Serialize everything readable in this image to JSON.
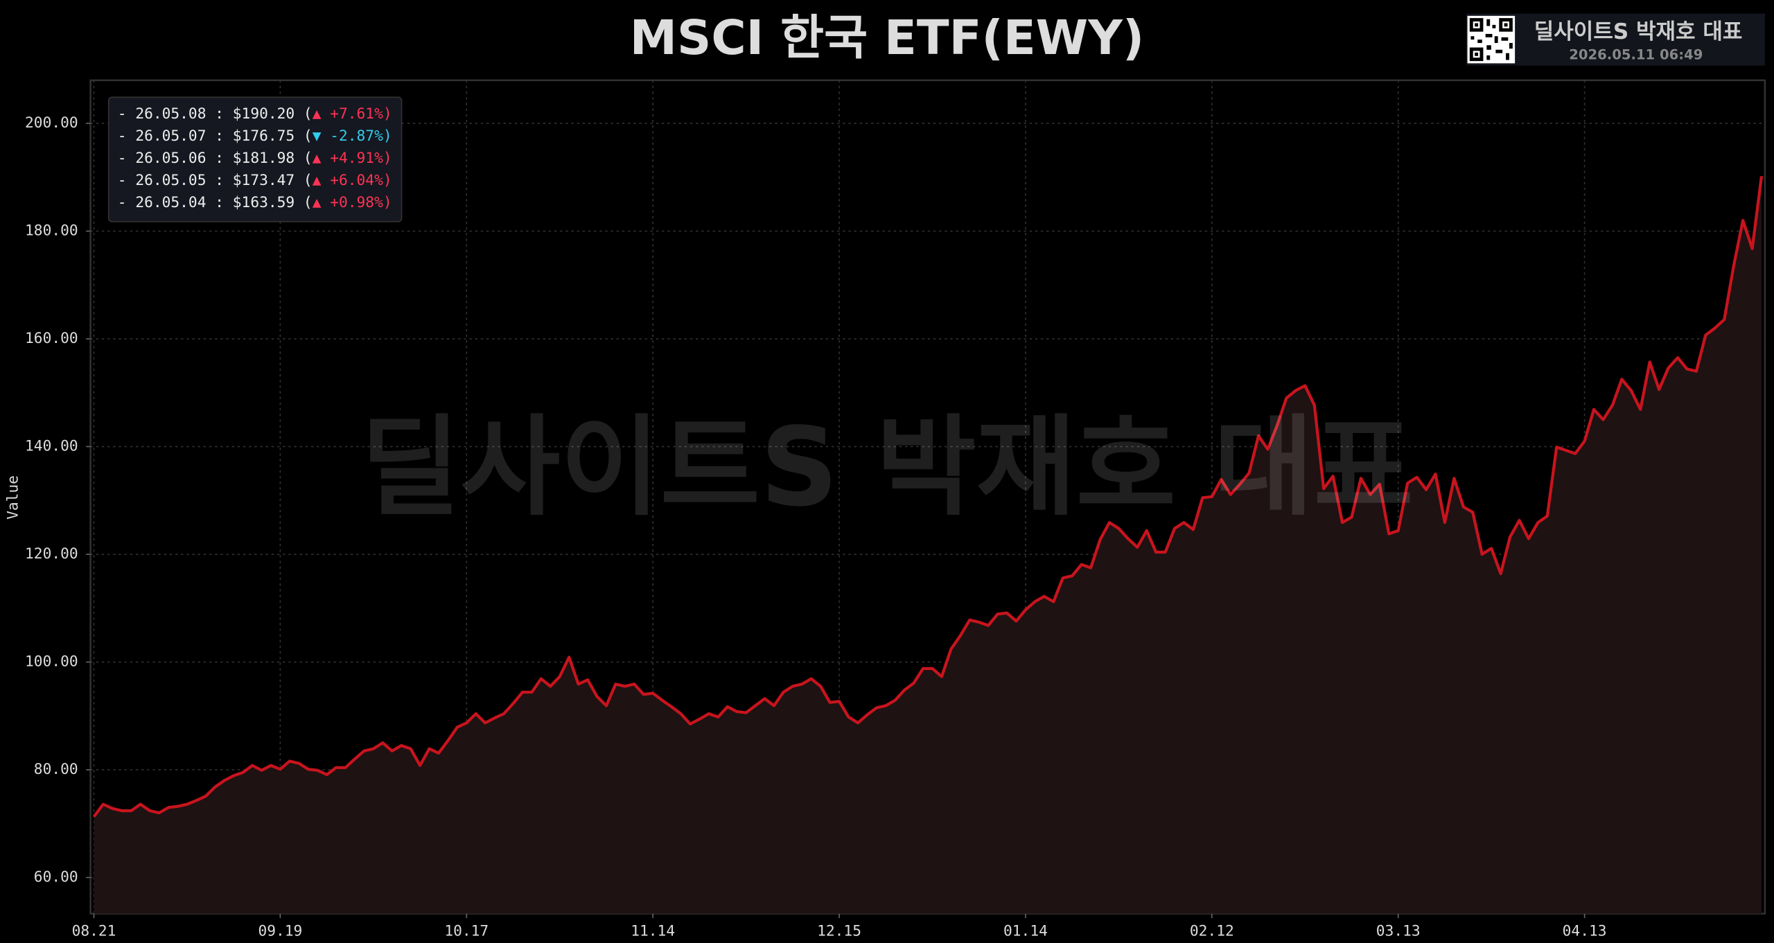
{
  "chart_data": {
    "type": "line",
    "title": "MSCI 한국 ETF(EWY)",
    "watermark": "딜사이트S 박재호 대표",
    "badge": {
      "name": "딜사이트S 박재호 대표",
      "timestamp": "2026.05.11 06:49"
    },
    "y_label": "Value",
    "color": "#c8141e",
    "fill_color": "#1e1212",
    "grid": true,
    "legend_position": "upper left",
    "ylim": [
      53.3,
      208
    ],
    "yticks": [
      {
        "value": 60,
        "label": "60.00"
      },
      {
        "value": 80,
        "label": "80.00"
      },
      {
        "value": 100,
        "label": "100.00"
      },
      {
        "value": 120,
        "label": "120.00"
      },
      {
        "value": 140,
        "label": "140.00"
      },
      {
        "value": 160,
        "label": "160.00"
      },
      {
        "value": 180,
        "label": "180.00"
      },
      {
        "value": 200,
        "label": "200.00"
      }
    ],
    "categories": [
      "08.21",
      null,
      null,
      null,
      null,
      null,
      null,
      null,
      null,
      null,
      null,
      null,
      null,
      null,
      null,
      null,
      null,
      null,
      null,
      null,
      "09.19",
      null,
      null,
      null,
      null,
      null,
      null,
      null,
      null,
      null,
      null,
      null,
      null,
      null,
      null,
      null,
      null,
      null,
      null,
      null,
      "10.17",
      null,
      null,
      null,
      null,
      null,
      null,
      null,
      null,
      null,
      null,
      null,
      null,
      null,
      null,
      null,
      null,
      null,
      null,
      null,
      "11.14",
      null,
      null,
      null,
      null,
      null,
      null,
      null,
      null,
      null,
      null,
      null,
      null,
      null,
      null,
      null,
      null,
      null,
      null,
      null,
      "12.15",
      null,
      null,
      null,
      null,
      null,
      null,
      null,
      null,
      null,
      null,
      null,
      null,
      null,
      null,
      null,
      null,
      null,
      null,
      null,
      "01.14",
      null,
      null,
      null,
      null,
      null,
      null,
      null,
      null,
      null,
      null,
      null,
      null,
      null,
      null,
      null,
      null,
      null,
      null,
      null,
      "02.12",
      null,
      null,
      null,
      null,
      null,
      null,
      null,
      null,
      null,
      null,
      null,
      null,
      null,
      null,
      null,
      null,
      null,
      null,
      null,
      "03.13",
      null,
      null,
      null,
      null,
      null,
      null,
      null,
      null,
      null,
      null,
      null,
      null,
      null,
      null,
      null,
      null,
      null,
      null,
      null,
      "04.13",
      null,
      null,
      null,
      null,
      null,
      null,
      null,
      null,
      null,
      null,
      null,
      null,
      null,
      null,
      null,
      null,
      null,
      null,
      null
    ],
    "values": [
      71.3,
      73.6,
      72.8,
      72.4,
      72.4,
      73.6,
      72.4,
      72.0,
      73.0,
      73.2,
      73.6,
      74.3,
      75.1,
      76.8,
      78.0,
      78.9,
      79.5,
      80.8,
      79.9,
      80.8,
      80.1,
      81.6,
      81.2,
      80.1,
      79.9,
      79.1,
      80.4,
      80.4,
      82.0,
      83.5,
      83.9,
      85.0,
      83.5,
      84.5,
      83.9,
      80.8,
      83.9,
      83.1,
      85.4,
      87.9,
      88.7,
      90.4,
      88.7,
      89.6,
      90.4,
      92.3,
      94.4,
      94.4,
      96.9,
      95.5,
      97.3,
      100.9,
      95.9,
      96.7,
      93.6,
      91.9,
      95.9,
      95.5,
      95.9,
      94.0,
      94.2,
      92.9,
      91.7,
      90.4,
      88.5,
      89.4,
      90.4,
      89.8,
      91.7,
      90.8,
      90.6,
      91.9,
      93.2,
      91.9,
      94.4,
      95.5,
      95.9,
      96.9,
      95.5,
      92.5,
      92.7,
      89.8,
      88.7,
      90.2,
      91.5,
      91.9,
      92.9,
      94.8,
      96.1,
      98.8,
      98.8,
      97.3,
      102.4,
      104.9,
      107.8,
      107.4,
      106.8,
      108.9,
      109.1,
      107.6,
      109.7,
      111.2,
      112.2,
      111.2,
      115.6,
      116.0,
      118.1,
      117.5,
      122.7,
      125.9,
      124.8,
      122.9,
      121.3,
      124.4,
      120.4,
      120.4,
      124.8,
      125.9,
      124.6,
      130.5,
      130.7,
      133.9,
      131.1,
      133.0,
      135.1,
      142.0,
      139.5,
      143.9,
      149.0,
      150.4,
      151.3,
      147.7,
      132.2,
      134.5,
      125.9,
      126.9,
      134.1,
      131.1,
      133.0,
      123.8,
      124.4,
      133.2,
      134.3,
      132.0,
      134.9,
      125.9,
      134.1,
      128.8,
      127.8,
      120.0,
      121.1,
      116.4,
      123.2,
      126.3,
      122.9,
      125.9,
      127.1,
      139.9,
      139.3,
      138.7,
      141.0,
      146.9,
      145.0,
      147.7,
      152.5,
      150.4,
      146.9,
      155.7,
      150.6,
      154.6,
      156.5,
      154.4,
      154.0,
      160.7,
      162.0,
      163.59,
      173.47,
      181.98,
      176.75,
      190.2
    ],
    "legend": [
      {
        "text": "- 26.05.08 : $190.20 (",
        "change": "▲ +7.61%)",
        "color": "#ff3355"
      },
      {
        "text": "- 26.05.07 : $176.75 (",
        "change": "▼ -2.87%)",
        "color": "#33ccee"
      },
      {
        "text": "- 26.05.06 : $181.98 (",
        "change": "▲ +4.91%)",
        "color": "#ff3355"
      },
      {
        "text": "- 26.05.05 : $173.47 (",
        "change": "▲ +6.04%)",
        "color": "#ff3355"
      },
      {
        "text": "- 26.05.04 : $163.59 (",
        "change": "▲ +0.98%)",
        "color": "#ff3355"
      }
    ]
  }
}
